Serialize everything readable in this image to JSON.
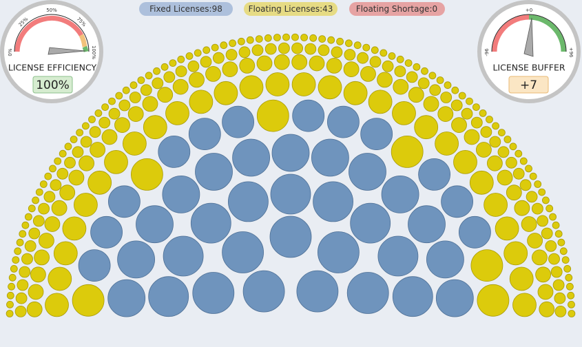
{
  "legend": [
    "Fixed Licenses:98",
    "Floating Licenses:43",
    "Floating Shortage:0"
  ],
  "gauges": [
    {
      "title": "LICENSE EFFICIENCY",
      "value": "100%",
      "ticks": [
        "0%",
        "25%",
        "50%",
        "75%",
        "100%"
      ]
    },
    {
      "title": "LICENSE BUFFER",
      "value": "+7",
      "ticks": [
        "-96",
        "+0",
        "+96"
      ]
    }
  ]
}
